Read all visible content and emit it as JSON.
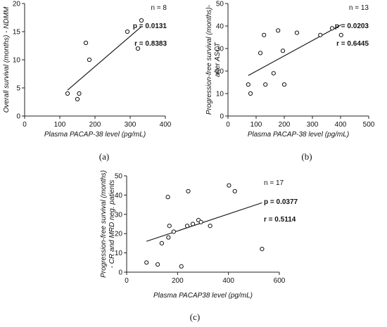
{
  "chart_data": [
    {
      "type": "scatter",
      "id": "a",
      "caption": "(a)",
      "xlabel": "Plasma PACAP-38 level (pg/mL)",
      "ylabel": "Overall survival (months) - NDMM",
      "xlim": [
        0,
        400
      ],
      "ylim": [
        0,
        20
      ],
      "xticks": [
        0,
        100,
        200,
        300,
        400
      ],
      "yticks": [
        0,
        5,
        10,
        15,
        20
      ],
      "points": [
        {
          "x": 122,
          "y": 4
        },
        {
          "x": 150,
          "y": 3
        },
        {
          "x": 155,
          "y": 4
        },
        {
          "x": 174,
          "y": 13
        },
        {
          "x": 184,
          "y": 10
        },
        {
          "x": 292,
          "y": 15
        },
        {
          "x": 322,
          "y": 12
        },
        {
          "x": 332,
          "y": 17
        }
      ],
      "trendline": {
        "x": [
          122,
          332
        ],
        "y": [
          4.6,
          15.9
        ]
      },
      "stats": {
        "n_label": "n = 8",
        "p_label": "p = 0.0131",
        "r_label": "r = 0.8383"
      }
    },
    {
      "type": "scatter",
      "id": "b",
      "caption": "(b)",
      "xlabel": "Plasma PACAP-38 level (pg/mL)",
      "ylabel_lines": [
        "Progression-free survival (months)-",
        "after ASCT"
      ],
      "xlim": [
        0,
        500
      ],
      "ylim": [
        0,
        50
      ],
      "xticks": [
        0,
        100,
        200,
        300,
        400,
        500
      ],
      "yticks": [
        0,
        10,
        20,
        30,
        40,
        50
      ],
      "points": [
        {
          "x": 72,
          "y": 14
        },
        {
          "x": 80,
          "y": 10
        },
        {
          "x": 115,
          "y": 28
        },
        {
          "x": 128,
          "y": 36
        },
        {
          "x": 133,
          "y": 14
        },
        {
          "x": 162,
          "y": 19
        },
        {
          "x": 178,
          "y": 38
        },
        {
          "x": 195,
          "y": 29
        },
        {
          "x": 200,
          "y": 14
        },
        {
          "x": 245,
          "y": 37
        },
        {
          "x": 328,
          "y": 36
        },
        {
          "x": 370,
          "y": 39
        },
        {
          "x": 402,
          "y": 36
        }
      ],
      "trendline": {
        "x": [
          72,
          402
        ],
        "y": [
          18,
          40.5
        ]
      },
      "stats": {
        "n_label": "n = 13",
        "p_label": "p = 0.0203",
        "r_label": "r = 0.6445"
      }
    },
    {
      "type": "scatter",
      "id": "c",
      "caption": "(c)",
      "xlabel": "Plasma PACAP38 level (pg/mL)",
      "ylabel_lines": [
        "Progression-free survival (months)",
        "- CR and MRD neg. patients"
      ],
      "xlim": [
        0,
        600
      ],
      "ylim": [
        0,
        50
      ],
      "xticks": [
        0,
        200,
        400,
        600
      ],
      "yticks": [
        0,
        10,
        20,
        30,
        40,
        50
      ],
      "points": [
        {
          "x": 78,
          "y": 5
        },
        {
          "x": 122,
          "y": 4
        },
        {
          "x": 138,
          "y": 15
        },
        {
          "x": 162,
          "y": 39
        },
        {
          "x": 164,
          "y": 18
        },
        {
          "x": 168,
          "y": 24
        },
        {
          "x": 185,
          "y": 21
        },
        {
          "x": 215,
          "y": 3
        },
        {
          "x": 238,
          "y": 24
        },
        {
          "x": 242,
          "y": 42
        },
        {
          "x": 260,
          "y": 25
        },
        {
          "x": 282,
          "y": 27
        },
        {
          "x": 292,
          "y": 26
        },
        {
          "x": 328,
          "y": 24
        },
        {
          "x": 402,
          "y": 45
        },
        {
          "x": 425,
          "y": 42
        },
        {
          "x": 532,
          "y": 12
        }
      ],
      "trendline": {
        "x": [
          78,
          532
        ],
        "y": [
          16,
          36
        ]
      },
      "stats": {
        "n_label": "n = 17",
        "p_label": "p = 0.0377",
        "r_label": "r = 0.5114"
      }
    }
  ]
}
